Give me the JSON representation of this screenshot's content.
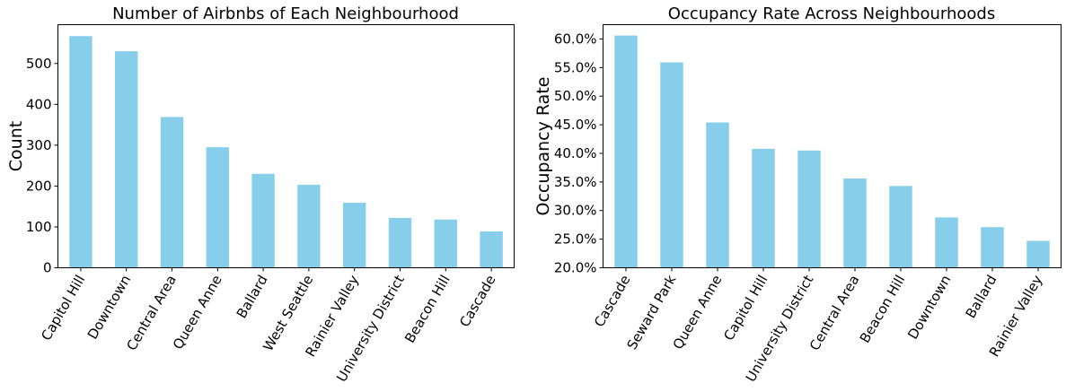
{
  "chart_data": [
    {
      "type": "bar",
      "title": "Number of Airbnbs of Each Neighbourhood",
      "xlabel": "",
      "ylabel": "Count",
      "categories": [
        "Capitol Hill",
        "Downtown",
        "Central Area",
        "Queen Anne",
        "Ballard",
        "West Seattle",
        "Rainier Valley",
        "University District",
        "Beacon Hill",
        "Cascade"
      ],
      "values": [
        567,
        530,
        369,
        295,
        230,
        203,
        159,
        122,
        118,
        89
      ],
      "ylim": [
        0,
        595
      ],
      "yticks": [
        0,
        100,
        200,
        300,
        400,
        500
      ],
      "ytick_labels": [
        "0",
        "100",
        "200",
        "300",
        "400",
        "500"
      ],
      "bar_color": "#87ceeb",
      "grid": false
    },
    {
      "type": "bar",
      "title": "Occupancy Rate Across Neighbourhoods",
      "xlabel": "",
      "ylabel": "Occupancy Rate",
      "categories": [
        "Cascade",
        "Seward Park",
        "Queen Anne",
        "Capitol Hill",
        "University District",
        "Central Area",
        "Beacon Hill",
        "Downtown",
        "Ballard",
        "Rainier Valley"
      ],
      "values": [
        0.606,
        0.559,
        0.454,
        0.408,
        0.405,
        0.356,
        0.343,
        0.288,
        0.271,
        0.247
      ],
      "ylim": [
        0.2,
        0.625
      ],
      "yticks": [
        0.2,
        0.25,
        0.3,
        0.35,
        0.4,
        0.45,
        0.5,
        0.55,
        0.6
      ],
      "ytick_labels": [
        "20.0%",
        "25.0%",
        "30.0%",
        "35.0%",
        "40.0%",
        "45.0%",
        "50.0%",
        "55.0%",
        "60.0%"
      ],
      "bar_color": "#87ceeb",
      "grid": false
    }
  ]
}
